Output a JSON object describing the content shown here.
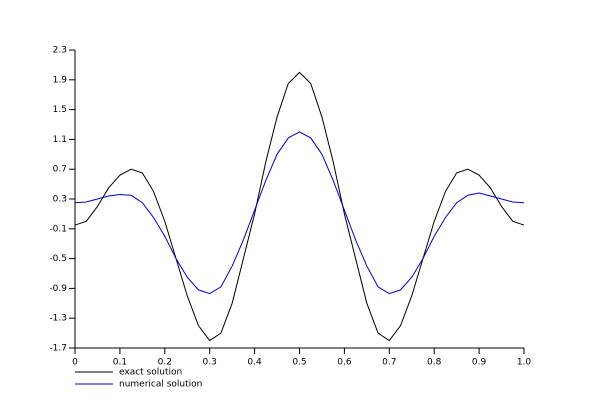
{
  "chart_data": {
    "type": "line",
    "x": [
      0,
      0.025,
      0.05,
      0.075,
      0.1,
      0.125,
      0.15,
      0.175,
      0.2,
      0.225,
      0.25,
      0.275,
      0.3,
      0.325,
      0.35,
      0.375,
      0.4,
      0.425,
      0.45,
      0.475,
      0.5,
      0.525,
      0.55,
      0.575,
      0.6,
      0.625,
      0.65,
      0.675,
      0.7,
      0.725,
      0.75,
      0.775,
      0.8,
      0.825,
      0.85,
      0.875,
      0.9,
      0.925,
      0.95,
      0.975,
      1
    ],
    "series": [
      {
        "name": "exact solution",
        "color": "#000000",
        "values": [
          -0.05,
          0.0,
          0.2,
          0.45,
          0.62,
          0.7,
          0.65,
          0.4,
          0.0,
          -0.5,
          -1.0,
          -1.4,
          -1.6,
          -1.5,
          -1.1,
          -0.5,
          0.1,
          0.8,
          1.4,
          1.85,
          2.0,
          1.85,
          1.4,
          0.8,
          0.1,
          -0.5,
          -1.1,
          -1.5,
          -1.6,
          -1.4,
          -1.0,
          -0.5,
          0.0,
          0.4,
          0.65,
          0.7,
          0.62,
          0.45,
          0.2,
          0.0,
          -0.05
        ]
      },
      {
        "name": "numerical solution",
        "color": "#0000cc",
        "values": [
          0.25,
          0.26,
          0.3,
          0.34,
          0.36,
          0.35,
          0.25,
          0.05,
          -0.2,
          -0.5,
          -0.75,
          -0.92,
          -0.97,
          -0.88,
          -0.6,
          -0.25,
          0.15,
          0.55,
          0.9,
          1.12,
          1.2,
          1.12,
          0.9,
          0.55,
          0.15,
          -0.25,
          -0.6,
          -0.88,
          -0.97,
          -0.92,
          -0.75,
          -0.5,
          -0.2,
          0.05,
          0.25,
          0.35,
          0.38,
          0.34,
          0.3,
          0.26,
          0.25
        ]
      }
    ],
    "xlim": [
      0,
      1
    ],
    "xticks": [
      0,
      0.1,
      0.2,
      0.3,
      0.4,
      0.5,
      0.6,
      0.7,
      0.8,
      0.9,
      {
        "value": 1,
        "label": "1.0"
      }
    ],
    "ylim": [
      -1.7,
      2.3
    ],
    "yticks": [
      -1.7,
      -1.3,
      -0.9,
      -0.5,
      -0.1,
      0.3,
      0.7,
      1.1,
      1.5,
      1.9,
      2.3
    ],
    "legend": "bottom-left"
  }
}
